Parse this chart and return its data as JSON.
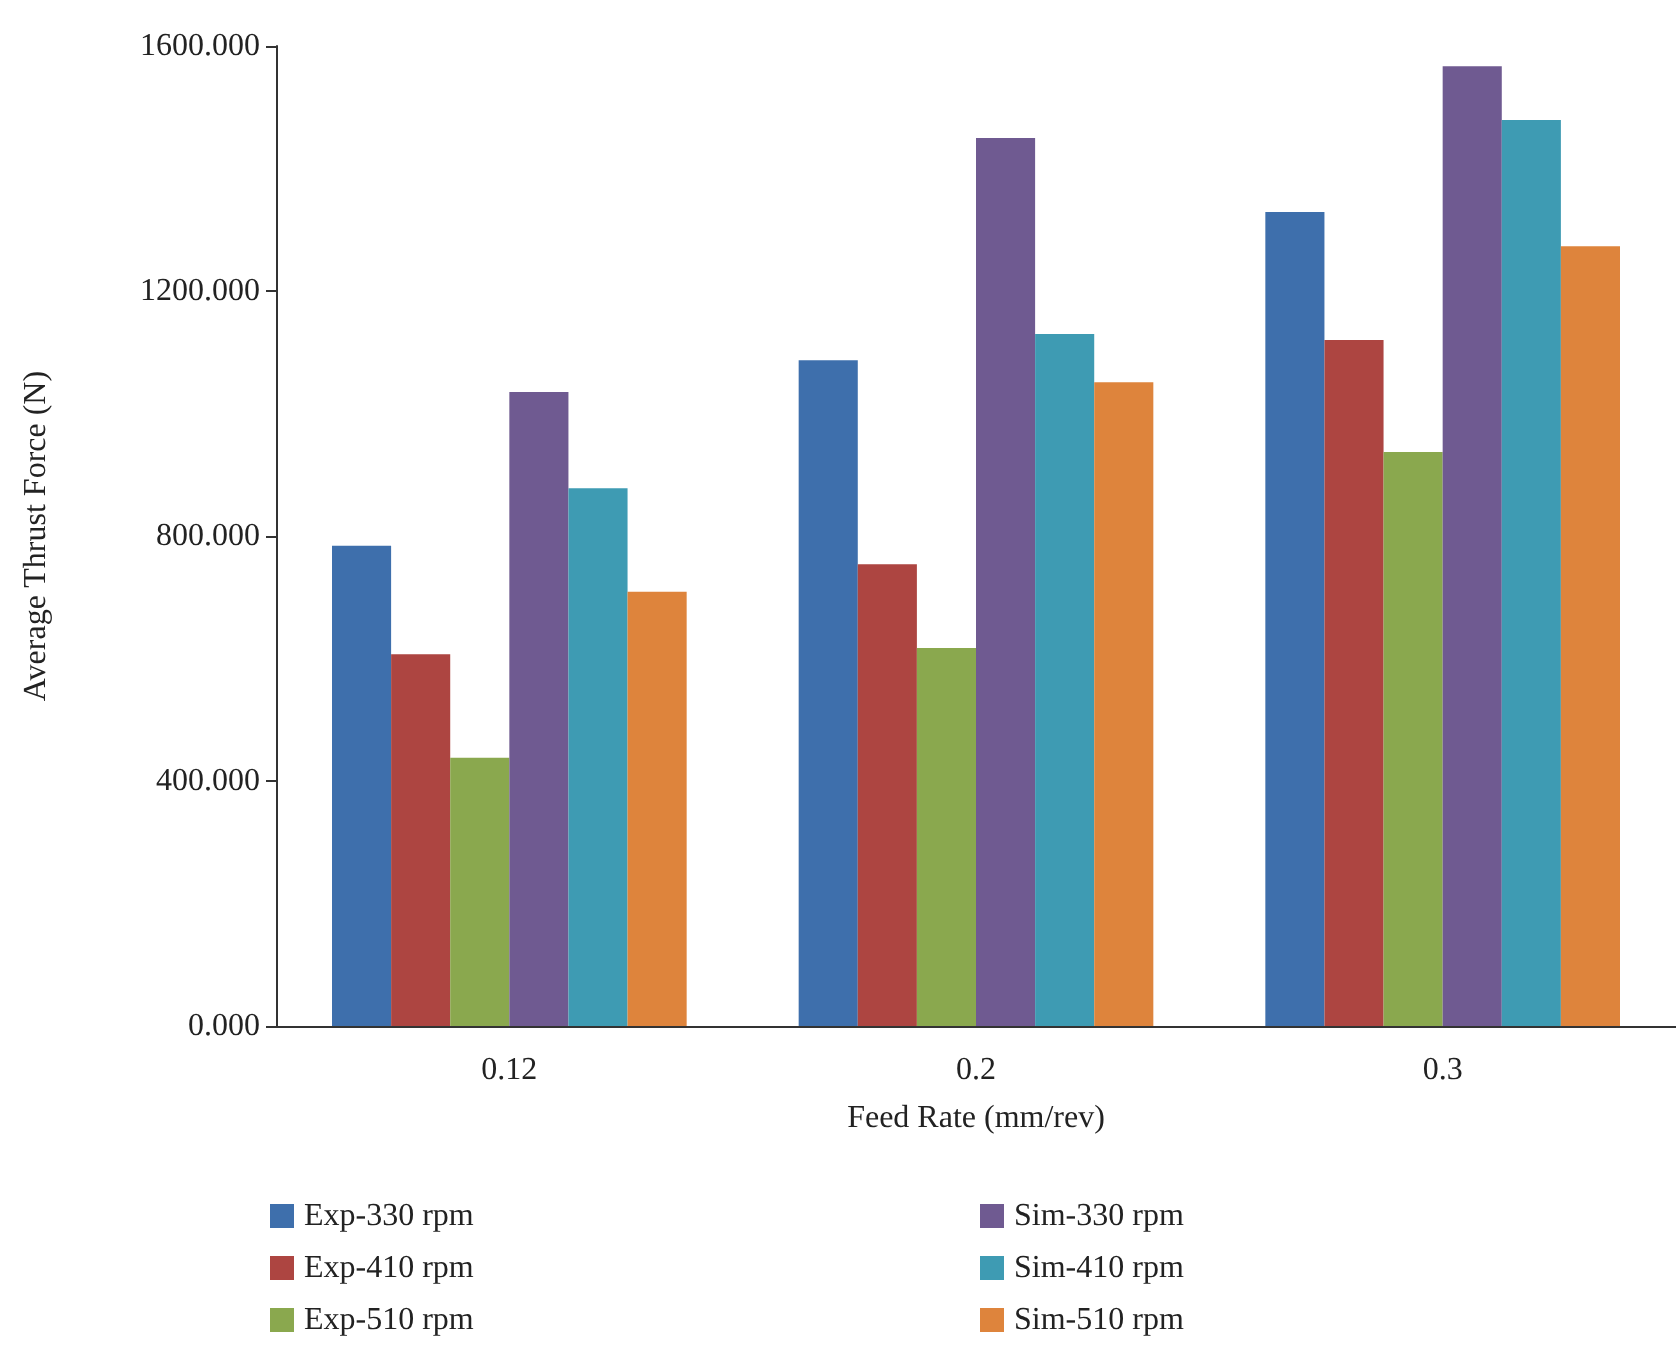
{
  "chart_data": {
    "type": "bar",
    "xlabel": "Feed Rate (mm/rev)",
    "ylabel": "Average Thrust Force (N)",
    "categories": [
      "0.12",
      "0.2",
      "0.3"
    ],
    "series": [
      {
        "name": "Exp-330 rpm",
        "color": "#3e6fac",
        "values": [
          784,
          1087,
          1329
        ]
      },
      {
        "name": "Exp-410 rpm",
        "color": "#ad4541",
        "values": [
          607,
          754,
          1120
        ]
      },
      {
        "name": "Exp-510 rpm",
        "color": "#8aa84e",
        "values": [
          438,
          617,
          937
        ]
      },
      {
        "name": "Sim-330 rpm",
        "color": "#6f5a91",
        "values": [
          1035,
          1450,
          1567
        ]
      },
      {
        "name": "Sim-410 rpm",
        "color": "#3e9bb3",
        "values": [
          878,
          1130,
          1479
        ]
      },
      {
        "name": "Sim-510 rpm",
        "color": "#de843c",
        "values": [
          709,
          1051,
          1273
        ]
      }
    ],
    "ylim": [
      0,
      1600
    ],
    "yticks": [
      {
        "value": 0,
        "label": "0.000"
      },
      {
        "value": 400,
        "label": "400.000"
      },
      {
        "value": 800,
        "label": "800.000"
      },
      {
        "value": 1200,
        "label": "1200.000"
      },
      {
        "value": 1600,
        "label": "1600.000"
      }
    ],
    "legend": "bottom"
  }
}
